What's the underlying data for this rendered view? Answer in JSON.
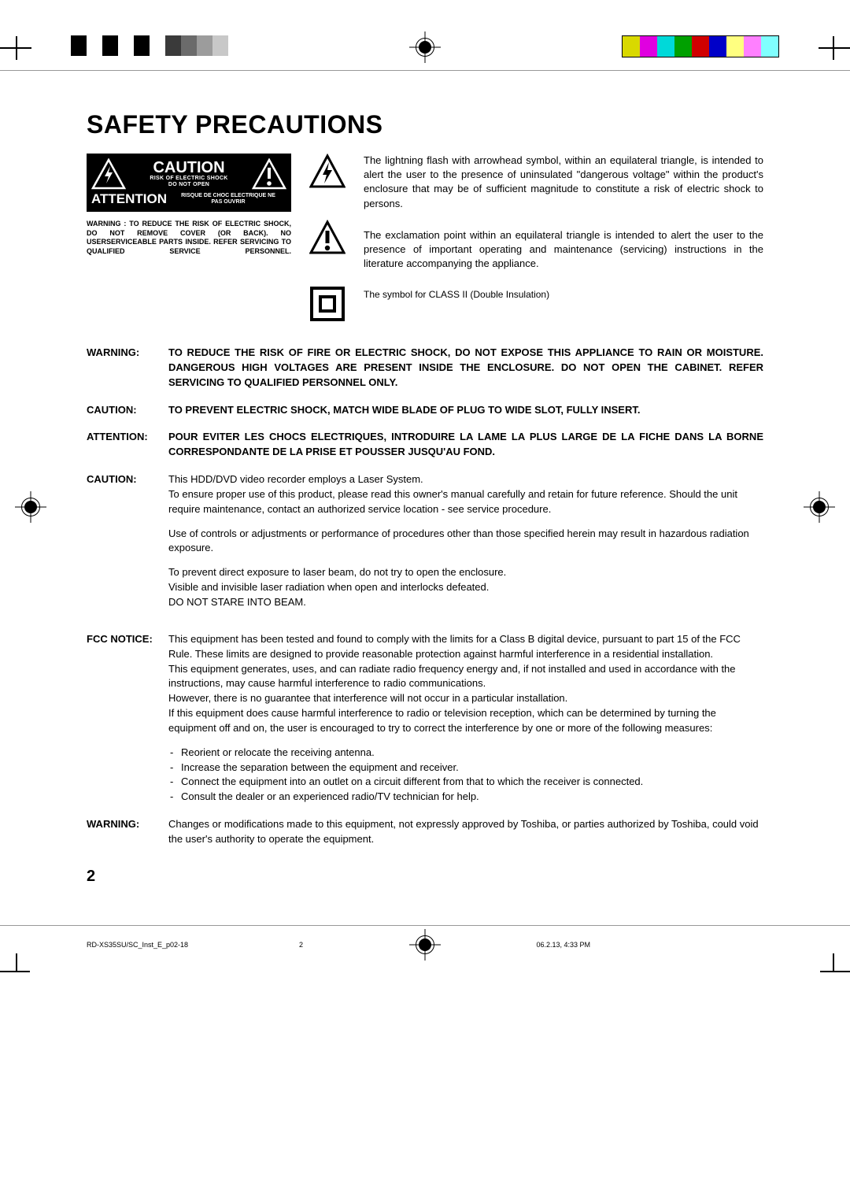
{
  "registration": {
    "bw_patches": [
      "#000000",
      "#ffffff",
      "#000000",
      "#ffffff",
      "#000000",
      "#ffffff",
      "#3a3a3a",
      "#6b6b6b",
      "#9c9c9c",
      "#c8c8c8"
    ],
    "color_patches": [
      "#d9d900",
      "#e000e0",
      "#00d9d9",
      "#00a000",
      "#d00000",
      "#0000c8",
      "#ffff80",
      "#ff80ff",
      "#80ffff"
    ]
  },
  "title": "SAFETY PRECAUTIONS",
  "caution_box": {
    "caution": "CAUTION",
    "risk1": "RISK OF ELECTRIC SHOCK",
    "risk2": "DO NOT OPEN",
    "attention": "ATTENTION",
    "risque1": "RISQUE DE CHOC ELECTRIQUE NE",
    "risque2": "PAS OUVRIR"
  },
  "caution_warn": "WARNING  :  TO  REDUCE  THE  RISK  OF ELECTRIC  SHOCK,  DO  NOT  REMOVE COVER (OR BACK). NO USERSERVICEABLE PARTS  INSIDE.  REFER  SERVICING  TO QUALIFIED SERVICE PERSONNEL.",
  "symbol_desc": {
    "lightning": "The lightning flash with arrowhead symbol, within an equilateral triangle, is intended to alert the user to the presence of uninsulated \"dangerous voltage\" within the product's enclosure that may be of sufficient magnitude to constitute a risk of electric shock to persons.",
    "exclaim": "The  exclamation  point  within  an  equilateral  triangle  is  intended to alert the user to the presence of important operating and maintenance (servicing) instructions in the literature accompanying the appliance.",
    "class2": "The symbol for CLASS II (Double Insulation)"
  },
  "notes": {
    "warning1": {
      "label": "WARNING:",
      "text": "TO REDUCE THE RISK OF FIRE OR ELECTRIC SHOCK, DO NOT EXPOSE THIS APPLIANCE TO  RAIN  OR  MOISTURE.  DANGEROUS  HIGH  VOLTAGES  ARE  PRESENT  INSIDE  THE ENCLOSURE. DO NOT OPEN  THE CABINET. REFER SERVICING TO QUALIFIED PERSONNEL ONLY."
    },
    "caution1": {
      "label": "CAUTION:",
      "text": "TO PREVENT ELECTRIC SHOCK, MATCH WIDE BLADE OF PLUG TO WIDE SLOT, FULLY INSERT."
    },
    "attention1": {
      "label": "ATTENTION:",
      "text": "POUR EVITER LES CHOCS ELECTRIQUES, INTRODUIRE LA LAME LA PLUS LARGE DE LA FICHE DANS LA BORNE CORRESPONDANTE DE LA PRISE ET POUSSER JUSQU'AU FOND."
    },
    "caution2": {
      "label": "CAUTION:",
      "p1": "This HDD/DVD video recorder employs a Laser System.",
      "p2": "To ensure proper use of this product, please read this owner's manual carefully and retain for future reference. Should the unit require maintenance, contact an authorized service location - see service procedure.",
      "p3": "Use of controls or adjustments or performance of procedures other than those specified herein may result in hazardous radiation exposure.",
      "p4a": "To prevent direct exposure to laser beam, do not try to open the enclosure.",
      "p4b": "Visible and invisible laser radiation when open and interlocks defeated.",
      "p4c": "DO NOT STARE INTO BEAM."
    },
    "fcc": {
      "label": "FCC NOTICE:",
      "p1": "This equipment has been tested and found to comply with the limits for a Class B digital device, pursuant to part 15 of the FCC Rule. These limits are designed to provide reasonable protection against harmful interference in a residential installation.",
      "p2": "This equipment generates, uses, and can radiate radio frequency energy and, if not installed and used in accordance with the instructions, may cause harmful interference to radio communications.",
      "p3": "However, there is no guarantee that interference will not occur in a particular installation.",
      "p4": "If this equipment does cause harmful interference to radio or television reception, which can be determined by turning the equipment off and on, the user is encouraged to try to correct the interference by one or more of the following measures:",
      "li1": "Reorient or relocate the receiving antenna.",
      "li2": "Increase the separation between the equipment and receiver.",
      "li3": "Connect the equipment into an outlet on a circuit different from that to which the receiver is connected.",
      "li4": "Consult the dealer or an experienced radio/TV technician for help."
    },
    "warning2": {
      "label": "WARNING:",
      "text": "Changes or modifications made to this equipment, not expressly approved by Toshiba, or parties authorized by Toshiba, could void the user's authority to operate the equipment."
    }
  },
  "page_number": "2",
  "footer": {
    "doc_id": "RD-XS35SU/SC_Inst_E_p02-18",
    "page": "2",
    "timestamp": "06.2.13, 4:33 PM"
  }
}
